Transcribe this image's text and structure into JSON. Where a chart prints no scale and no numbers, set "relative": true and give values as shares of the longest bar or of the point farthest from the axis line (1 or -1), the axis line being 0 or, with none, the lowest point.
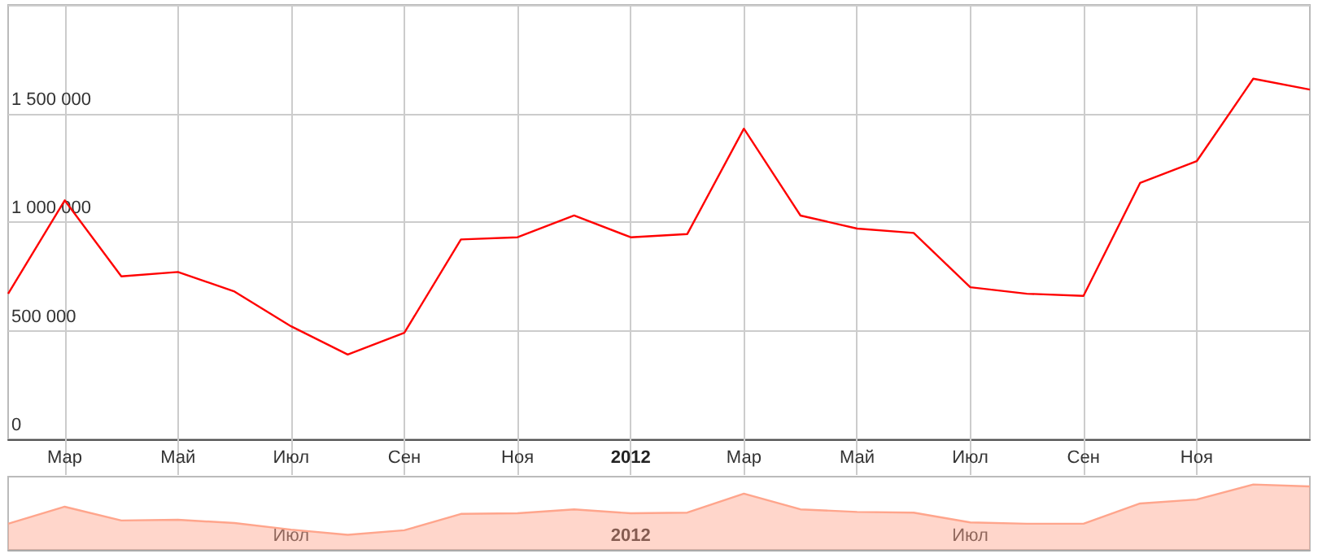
{
  "chart_data": [
    {
      "type": "line",
      "categories": [
        null,
        "Мар",
        null,
        "Май",
        null,
        "Июл",
        null,
        "Сен",
        null,
        "Ноя",
        null,
        "2012",
        null,
        "Мар",
        null,
        "Май",
        null,
        "Июл",
        null,
        "Сен",
        null,
        "Ноя",
        null,
        null
      ],
      "series": [
        {
          "color": "#ff0000",
          "values": [
            670000,
            1100000,
            750000,
            770000,
            680000,
            520000,
            390000,
            490000,
            920000,
            930000,
            1030000,
            930000,
            945000,
            1430000,
            1030000,
            970000,
            950000,
            700000,
            670000,
            660000,
            1180000,
            1280000,
            1660000,
            1610000
          ]
        }
      ],
      "ylim": [
        0,
        2000000
      ],
      "yticks": [
        {
          "value": 0,
          "label": "0"
        },
        {
          "value": 500000,
          "label": "500 000"
        },
        {
          "value": 1000000,
          "label": "1 000 000"
        },
        {
          "value": 1500000,
          "label": "1 500 000"
        }
      ],
      "grid": true,
      "marker": "none",
      "line_style": "solid"
    },
    {
      "type": "area",
      "categories": [
        null,
        null,
        null,
        null,
        null,
        "Июл",
        null,
        null,
        null,
        null,
        null,
        "2012",
        null,
        null,
        null,
        null,
        null,
        "Июл",
        null,
        null,
        null,
        null,
        null,
        null
      ],
      "series": [
        {
          "color": "#ffa58c",
          "values": [
            0.4,
            0.66,
            0.45,
            0.46,
            0.41,
            0.31,
            0.23,
            0.3,
            0.55,
            0.56,
            0.62,
            0.56,
            0.57,
            0.86,
            0.62,
            0.58,
            0.57,
            0.42,
            0.4,
            0.4,
            0.71,
            0.77,
            1,
            0.97
          ]
        }
      ],
      "relative": true,
      "tick_labels": "x",
      "marker": "none",
      "line_style": "solid"
    }
  ]
}
